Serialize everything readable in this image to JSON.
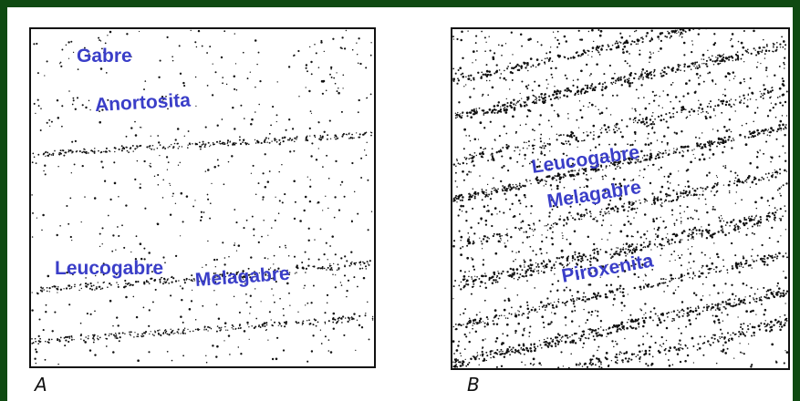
{
  "panels": [
    {
      "letter": "A",
      "labels": [
        "Gabre",
        "Anortosita",
        "Leucogabre",
        "Melagabre"
      ]
    },
    {
      "letter": "B",
      "labels": [
        "Leucogabre",
        "Melagabre",
        "Piroxenita"
      ]
    }
  ],
  "colors": {
    "background": "#0f4a12",
    "label": "#3a3ec8",
    "dots": "#111111"
  }
}
